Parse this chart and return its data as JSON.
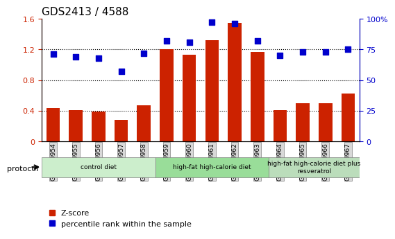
{
  "title": "GDS2413 / 4588",
  "samples": [
    "GSM140954",
    "GSM140955",
    "GSM140956",
    "GSM140957",
    "GSM140958",
    "GSM140959",
    "GSM140960",
    "GSM140961",
    "GSM140962",
    "GSM140963",
    "GSM140964",
    "GSM140965",
    "GSM140966",
    "GSM140967"
  ],
  "zscore": [
    0.43,
    0.41,
    0.39,
    0.28,
    0.47,
    1.2,
    1.13,
    1.32,
    1.55,
    1.17,
    0.41,
    0.5,
    0.5,
    0.62
  ],
  "percentile": [
    71,
    69,
    68,
    57,
    72,
    82,
    81,
    97,
    96,
    82,
    70,
    73,
    73,
    75
  ],
  "bar_color": "#cc2200",
  "dot_color": "#0000cc",
  "ylim_left": [
    0,
    1.6
  ],
  "ylim_right": [
    0,
    100
  ],
  "yticks_left": [
    0,
    0.4,
    0.8,
    1.2,
    1.6
  ],
  "ytick_labels_left": [
    "0",
    "0.4",
    "0.8",
    "1.2",
    "1.6"
  ],
  "yticks_right": [
    0,
    25,
    50,
    75,
    100
  ],
  "ytick_labels_right": [
    "0",
    "25",
    "50",
    "75",
    "100%"
  ],
  "groups": [
    {
      "label": "control diet",
      "start": 0,
      "end": 5,
      "color": "#cceecc"
    },
    {
      "label": "high-fat high-calorie diet",
      "start": 5,
      "end": 10,
      "color": "#99dd99"
    },
    {
      "label": "high-fat high-calorie diet plus\nresveratrol",
      "start": 10,
      "end": 14,
      "color": "#bbddbb"
    }
  ],
  "protocol_label": "protocol",
  "legend_zscore": "Z-score",
  "legend_percentile": "percentile rank within the sample",
  "grid_color": "#000000",
  "tick_color_left": "#cc2200",
  "tick_color_right": "#0000cc",
  "bg_color": "#ffffff",
  "plot_bg": "#ffffff",
  "sample_bg": "#d8d8d8"
}
